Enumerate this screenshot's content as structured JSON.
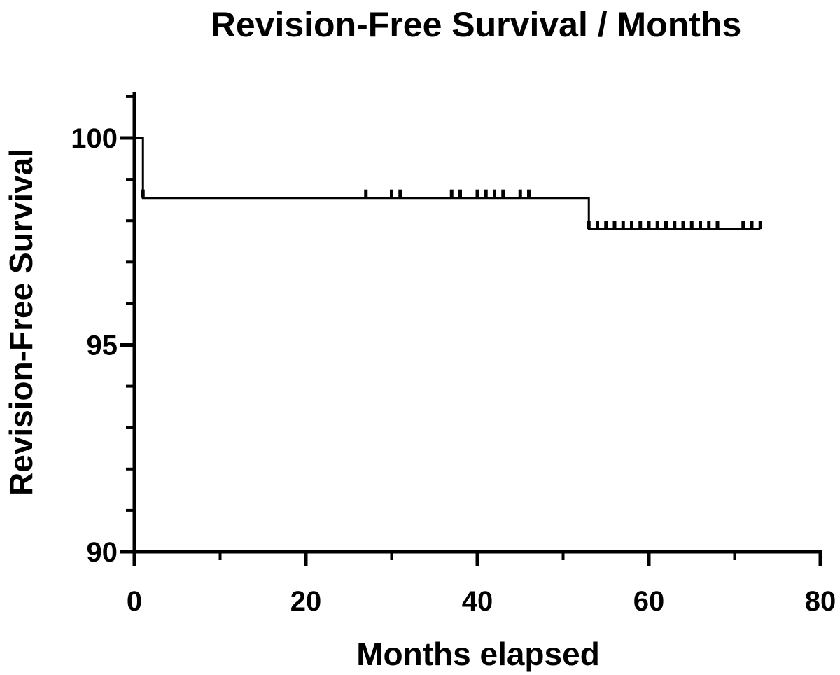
{
  "chart_data": {
    "type": "line",
    "title": "Revision-Free Survival  / Months",
    "xlabel": "Months elapsed",
    "ylabel": "Revision-Free  Survival",
    "xlim": [
      0,
      80
    ],
    "ylim": [
      90,
      101
    ],
    "x_ticks": [
      0,
      20,
      40,
      60,
      80
    ],
    "y_ticks": [
      90,
      95,
      100
    ],
    "x_minor_ticks": [
      10,
      30,
      50,
      70
    ],
    "y_minor_ticks": [
      91,
      92,
      93,
      94,
      96,
      97,
      98,
      99,
      101
    ],
    "grid": false,
    "legend": "none",
    "series": [
      {
        "steps": [
          {
            "x": 0,
            "y": 100
          },
          {
            "x": 1,
            "y": 98.55
          },
          {
            "x": 53,
            "y": 97.8
          },
          {
            "x": 73,
            "y": 97.8
          }
        ],
        "censored": [
          {
            "x": 1,
            "y": 98.55
          },
          {
            "x": 27,
            "y": 98.55
          },
          {
            "x": 30,
            "y": 98.55
          },
          {
            "x": 31,
            "y": 98.55
          },
          {
            "x": 37,
            "y": 98.55
          },
          {
            "x": 38,
            "y": 98.55
          },
          {
            "x": 40,
            "y": 98.55
          },
          {
            "x": 41,
            "y": 98.55
          },
          {
            "x": 42,
            "y": 98.55
          },
          {
            "x": 43,
            "y": 98.55
          },
          {
            "x": 45,
            "y": 98.55
          },
          {
            "x": 46,
            "y": 98.55
          },
          {
            "x": 53,
            "y": 97.8
          },
          {
            "x": 54,
            "y": 97.8
          },
          {
            "x": 55,
            "y": 97.8
          },
          {
            "x": 56,
            "y": 97.8
          },
          {
            "x": 57,
            "y": 97.8
          },
          {
            "x": 58,
            "y": 97.8
          },
          {
            "x": 59,
            "y": 97.8
          },
          {
            "x": 60,
            "y": 97.8
          },
          {
            "x": 61,
            "y": 97.8
          },
          {
            "x": 62,
            "y": 97.8
          },
          {
            "x": 63,
            "y": 97.8
          },
          {
            "x": 64,
            "y": 97.8
          },
          {
            "x": 65,
            "y": 97.8
          },
          {
            "x": 66,
            "y": 97.8
          },
          {
            "x": 67,
            "y": 97.8
          },
          {
            "x": 68,
            "y": 97.8
          },
          {
            "x": 71,
            "y": 97.8
          },
          {
            "x": 72,
            "y": 97.8
          },
          {
            "x": 73,
            "y": 97.8
          }
        ]
      }
    ]
  }
}
